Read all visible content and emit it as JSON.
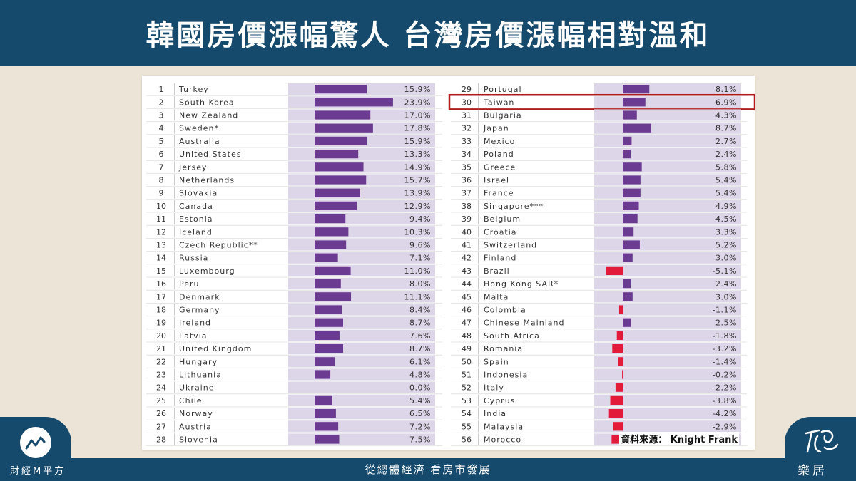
{
  "header": {
    "title": "韓國房價漲幅驚人 台灣房價漲幅相對溫和"
  },
  "source": "資料來源： Knight Frank",
  "footer": {
    "slogan": "從總體經濟 看房市發展",
    "brand_left": "財經M平方",
    "brand_right": "樂居"
  },
  "colors": {
    "positive": "#6b3b91",
    "negative": "#e31b3b",
    "bar_bg": "#ddd5e8",
    "highlight": "#b01c1c"
  },
  "highlight_rank": 30,
  "chart_data": {
    "type": "bar",
    "categories": [
      "Turkey",
      "South Korea",
      "New Zealand",
      "Sweden*",
      "Australia",
      "United States",
      "Jersey",
      "Netherlands",
      "Slovakia",
      "Canada",
      "Estonia",
      "Iceland",
      "Czech Republic**",
      "Russia",
      "Luxembourg",
      "Peru",
      "Denmark",
      "Germany",
      "Ireland",
      "Latvia",
      "United Kingdom",
      "Hungary",
      "Lithuania",
      "Ukraine",
      "Chile",
      "Norway",
      "Austria",
      "Slovenia",
      "Portugal",
      "Taiwan",
      "Bulgaria",
      "Japan",
      "Mexico",
      "Poland",
      "Greece",
      "Israel",
      "France",
      "Singapore***",
      "Belgium",
      "Croatia",
      "Switzerland",
      "Finland",
      "Brazil",
      "Hong Kong SAR*",
      "Malta",
      "Colombia",
      "Chinese Mainland",
      "South Africa",
      "Romania",
      "Spain",
      "Indonesia",
      "Italy",
      "Cyprus",
      "India",
      "Malaysia",
      "Morocco"
    ],
    "ranks": [
      1,
      2,
      3,
      4,
      5,
      6,
      7,
      8,
      9,
      10,
      11,
      12,
      13,
      14,
      15,
      16,
      17,
      18,
      19,
      20,
      21,
      22,
      23,
      24,
      25,
      26,
      27,
      28,
      29,
      30,
      31,
      32,
      33,
      34,
      35,
      36,
      37,
      38,
      39,
      40,
      41,
      42,
      43,
      44,
      45,
      46,
      47,
      48,
      49,
      50,
      51,
      52,
      53,
      54,
      55,
      56
    ],
    "values": [
      15.9,
      23.9,
      17.0,
      17.8,
      15.9,
      13.3,
      14.9,
      15.7,
      13.9,
      12.9,
      9.4,
      10.3,
      9.6,
      7.1,
      11.0,
      8.0,
      11.1,
      8.4,
      8.7,
      7.6,
      8.7,
      6.1,
      4.8,
      0.0,
      5.4,
      6.5,
      7.2,
      7.5,
      8.1,
      6.9,
      4.3,
      8.7,
      2.7,
      2.4,
      5.8,
      5.4,
      5.4,
      4.9,
      4.5,
      3.3,
      5.2,
      3.0,
      -5.1,
      2.4,
      3.0,
      -1.1,
      2.5,
      -1.8,
      -3.2,
      -1.4,
      -0.2,
      -2.2,
      -3.8,
      -4.2,
      -2.9,
      -3.4
    ],
    "labels": [
      "15.9%",
      "23.9%",
      "17.0%",
      "17.8%",
      "15.9%",
      "13.3%",
      "14.9%",
      "15.7%",
      "13.9%",
      "12.9%",
      "9.4%",
      "10.3%",
      "9.6%",
      "7.1%",
      "11.0%",
      "8.0%",
      "11.1%",
      "8.4%",
      "8.7%",
      "7.6%",
      "8.7%",
      "6.1%",
      "4.8%",
      "0.0%",
      "5.4%",
      "6.5%",
      "7.2%",
      "7.5%",
      "8.1%",
      "6.9%",
      "4.3%",
      "8.7%",
      "2.7%",
      "2.4%",
      "5.8%",
      "5.4%",
      "5.4%",
      "4.9%",
      "4.5%",
      "3.3%",
      "5.2%",
      "3.0%",
      "-5.1%",
      "2.4%",
      "3.0%",
      "-1.1%",
      "2.5%",
      "-1.8%",
      "-3.2%",
      "-1.4%",
      "-0.2%",
      "-2.2%",
      "-3.8%",
      "-4.2%",
      "-2.9%",
      "-3.4%"
    ]
  }
}
